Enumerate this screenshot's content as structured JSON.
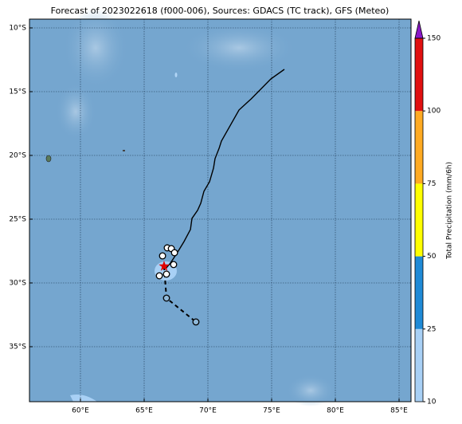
{
  "chart_data": {
    "type": "map",
    "title": "Forecast of 2023022618 (f000-006), Sources: GDACS (TC track), GFS (Meteo)",
    "xlim": [
      56,
      85.9375
    ],
    "ylim": [
      -39.3125,
      -9.3125
    ],
    "xticks": [
      {
        "value": 60,
        "label": "60°E"
      },
      {
        "value": 65,
        "label": "65°E"
      },
      {
        "value": 70,
        "label": "70°E"
      },
      {
        "value": 75,
        "label": "75°E"
      },
      {
        "value": 80,
        "label": "80°E"
      },
      {
        "value": 85,
        "label": "85°E"
      }
    ],
    "yticks": [
      {
        "value": -10,
        "label": "10°S"
      },
      {
        "value": -15,
        "label": "15°S"
      },
      {
        "value": -20,
        "label": "20°S"
      },
      {
        "value": -25,
        "label": "25°S"
      },
      {
        "value": -30,
        "label": "30°S"
      },
      {
        "value": -35,
        "label": "35°S"
      }
    ],
    "grid": true,
    "track": {
      "lon": [
        76.0,
        74.94,
        73.4,
        72.44,
        71.06,
        70.88,
        70.56,
        70.44,
        70.13,
        69.69,
        69.44,
        69.19,
        68.75,
        68.63,
        68.13,
        67.56,
        67.06,
        66.69
      ],
      "lat": [
        -13.25,
        -14.0,
        -15.56,
        -16.44,
        -18.88,
        -19.44,
        -20.25,
        -21.0,
        -22.06,
        -22.81,
        -23.75,
        -24.31,
        -24.94,
        -25.81,
        -26.75,
        -27.69,
        -28.44,
        -28.88
      ]
    },
    "observed_points": {
      "lon": [
        66.81,
        67.13,
        67.38,
        66.44,
        67.31,
        66.19,
        66.75
      ],
      "lat": [
        -27.25,
        -27.31,
        -27.63,
        -27.88,
        -28.56,
        -29.44,
        -29.31
      ]
    },
    "forecast": {
      "lon": [
        66.56,
        66.75,
        69.06
      ],
      "lat": [
        -28.69,
        -31.19,
        -33.06
      ]
    },
    "colorbar": {
      "label": "Total Precipitation (mm/6h)",
      "ticks": [
        10,
        25,
        50,
        75,
        100,
        150
      ],
      "colors": [
        "#a8d0f5",
        "#1f8ad6",
        "#ffff00",
        "#ffaa22",
        "#e01010"
      ],
      "extend_color": "#8a18c8"
    }
  }
}
